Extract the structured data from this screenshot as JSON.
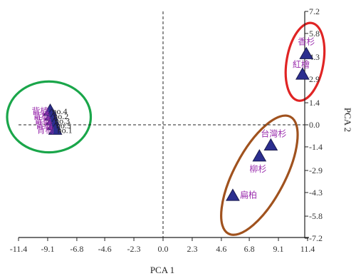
{
  "chart_data": {
    "type": "scatter",
    "xlabel": "PCA 1",
    "ylabel": "PCA 2",
    "xlim": [
      -11.4,
      11.4
    ],
    "ylim": [
      -7.2,
      7.2
    ],
    "x_ticks": [
      "-11.4",
      "-9.1",
      "-6.8",
      "-4.6",
      "-2.3",
      "0.0",
      "2.3",
      "4.6",
      "6.8",
      "9.1",
      "11.4"
    ],
    "y_ticks": [
      "7.2",
      "5.8",
      "4.3",
      "2.9",
      "1.4",
      "0.0",
      "-1.4",
      "-2.9",
      "-4.3",
      "-5.8",
      "-7.2"
    ],
    "reference_lines": {
      "x": 0,
      "y": 0,
      "style": "dashed"
    },
    "marker": {
      "shape": "triangle",
      "fill": "#2b2e8f",
      "stroke": "#1a1a4e"
    },
    "points": [
      {
        "label": "背楠",
        "suffix": "no.4",
        "x": -8.9,
        "y": 0.9
      },
      {
        "label": "背楠",
        "suffix": "no.2",
        "x": -8.8,
        "y": 0.6
      },
      {
        "label": "背楠",
        "suffix": "no.3",
        "x": -8.7,
        "y": 0.3
      },
      {
        "label": "背楠",
        "suffix": "no.5",
        "x": -8.6,
        "y": 0.0
      },
      {
        "label": "背楠",
        "suffix": "no.1",
        "x": -8.5,
        "y": -0.3
      },
      {
        "label": "香杉",
        "suffix": "",
        "x": 11.3,
        "y": 4.5
      },
      {
        "label": "紅檜",
        "suffix": "",
        "x": 11.0,
        "y": 3.2
      },
      {
        "label": "台灣杉",
        "suffix": "",
        "x": 8.5,
        "y": -1.3
      },
      {
        "label": "柳杉",
        "suffix": "",
        "x": 7.6,
        "y": -2.0
      },
      {
        "label": "扁柏",
        "suffix": "",
        "x": 5.5,
        "y": -4.5
      }
    ],
    "groups": [
      {
        "color": "#1aa64a",
        "cx": -9.0,
        "cy": 0.5,
        "rx": 3.3,
        "ry": 2.25,
        "rotate": 0
      },
      {
        "color": "#e02424",
        "cx": 11.2,
        "cy": 4.0,
        "rx": 1.45,
        "ry": 2.5,
        "rotate": 10
      },
      {
        "color": "#a0521e",
        "cx": 7.6,
        "cy": -3.2,
        "rx": 2.0,
        "ry": 4.2,
        "rotate": 28
      }
    ]
  }
}
